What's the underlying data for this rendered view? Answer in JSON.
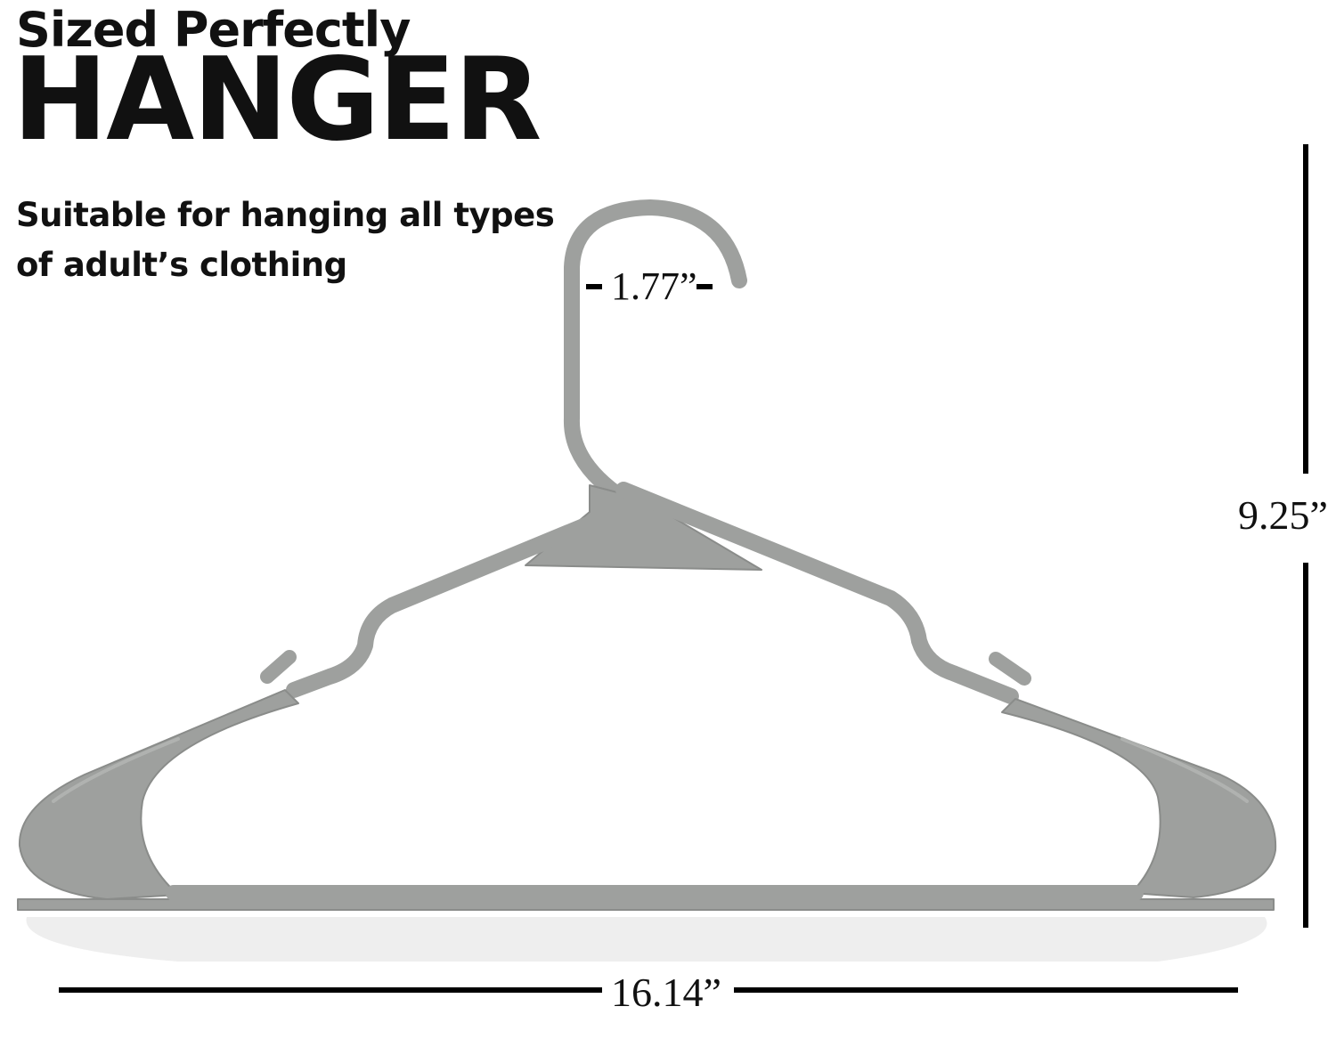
{
  "header": {
    "eyebrow": "Sized Perfectly",
    "title": "HANGER",
    "subtitle": "Suitable for hanging all types of adult’s clothing"
  },
  "dimensions": {
    "hook_opening": "1.77”",
    "height": "9.25”",
    "width": "16.14”"
  },
  "colors": {
    "hanger": "#9ea09e",
    "hanger_shadow": "#8a8c8a",
    "hanger_highlight": "#b4b6b4",
    "text": "#111111",
    "lines": "#000000"
  },
  "image": {
    "subject": "grey plastic clothes hanger"
  }
}
